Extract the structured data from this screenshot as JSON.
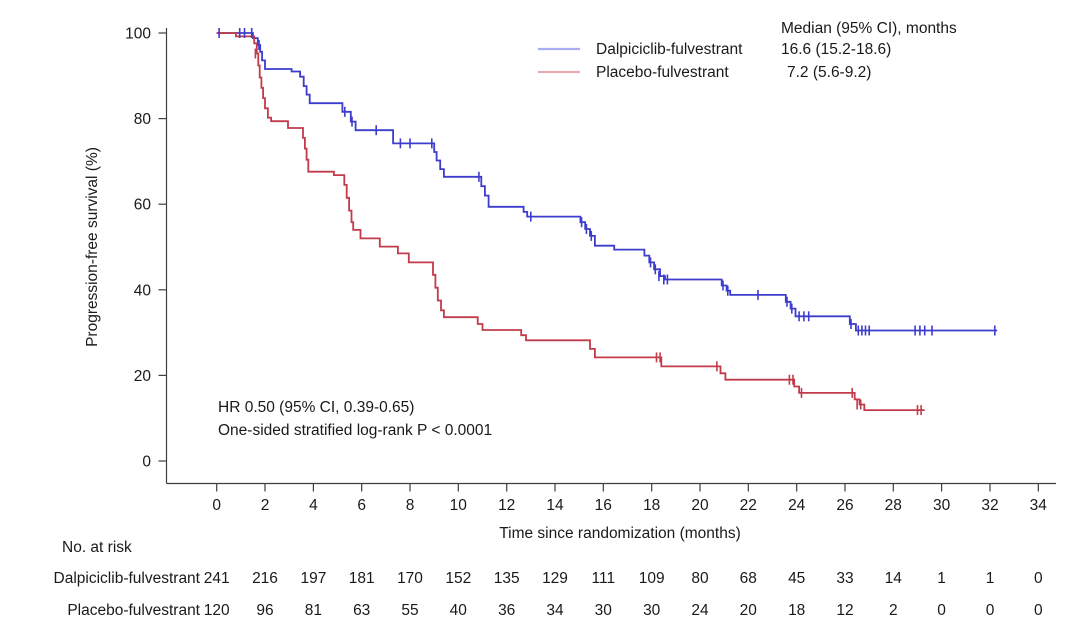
{
  "chart_data": {
    "type": "line",
    "subtype": "kaplan-meier-step",
    "title": "",
    "xlabel": "Time since randomization (months)",
    "ylabel": "Progression-free survival (%)",
    "xlim": [
      0,
      34
    ],
    "xticks": [
      0,
      2,
      4,
      6,
      8,
      10,
      12,
      14,
      16,
      18,
      20,
      22,
      24,
      26,
      28,
      30,
      32,
      34
    ],
    "ylim": [
      0,
      100
    ],
    "yticks": [
      0,
      20,
      40,
      60,
      80,
      100
    ],
    "grid": false,
    "legend_position": "top-right-inside",
    "legend_header": "Median (95% CI), months",
    "annotations": [
      "HR 0.50 (95% CI, 0.39-0.65)",
      "One-sided stratified log-rank P < 0.0001"
    ],
    "series": [
      {
        "name": "Dalpiciclib-fulvestrant",
        "median": "16.6 (15.2-18.6)",
        "color": "#3c3ccd",
        "legend_color": "#a7adf0",
        "end_time": 32.3,
        "steps": [
          [
            0,
            100
          ],
          [
            1.5,
            98.8
          ],
          [
            1.7,
            97.2
          ],
          [
            1.8,
            95.6
          ],
          [
            1.88,
            93.6
          ],
          [
            2.0,
            91.6
          ],
          [
            3.1,
            91.0
          ],
          [
            3.45,
            89.8
          ],
          [
            3.6,
            87.6
          ],
          [
            3.72,
            85.6
          ],
          [
            3.85,
            83.6
          ],
          [
            5.2,
            81.6
          ],
          [
            5.55,
            79.3
          ],
          [
            5.75,
            77.3
          ],
          [
            7.3,
            74.2
          ],
          [
            9.0,
            72.2
          ],
          [
            9.1,
            70.2
          ],
          [
            9.25,
            68.2
          ],
          [
            9.4,
            66.4
          ],
          [
            10.95,
            64.2
          ],
          [
            11.1,
            62.0
          ],
          [
            11.25,
            59.4
          ],
          [
            12.7,
            58.2
          ],
          [
            12.85,
            57.1
          ],
          [
            15.05,
            55.8
          ],
          [
            15.25,
            54.2
          ],
          [
            15.45,
            52.6
          ],
          [
            15.65,
            50.3
          ],
          [
            16.45,
            49.4
          ],
          [
            17.7,
            48.0
          ],
          [
            17.9,
            46.4
          ],
          [
            18.1,
            44.8
          ],
          [
            18.35,
            43.2
          ],
          [
            18.55,
            42.4
          ],
          [
            20.9,
            41.0
          ],
          [
            21.1,
            39.8
          ],
          [
            21.25,
            38.8
          ],
          [
            23.55,
            37.2
          ],
          [
            23.75,
            35.6
          ],
          [
            23.95,
            33.8
          ],
          [
            26.2,
            32.0
          ],
          [
            26.45,
            30.5
          ]
        ],
        "censors": [
          [
            0.1,
            100
          ],
          [
            0.95,
            100
          ],
          [
            1.15,
            100
          ],
          [
            1.45,
            100
          ],
          [
            1.75,
            97.2
          ],
          [
            5.3,
            81.6
          ],
          [
            5.6,
            79.3
          ],
          [
            6.6,
            77.3
          ],
          [
            7.6,
            74.2
          ],
          [
            8.0,
            74.2
          ],
          [
            8.9,
            74.2
          ],
          [
            10.85,
            66.4
          ],
          [
            13.0,
            57.1
          ],
          [
            15.1,
            55.8
          ],
          [
            15.3,
            54.2
          ],
          [
            15.5,
            52.6
          ],
          [
            17.95,
            46.4
          ],
          [
            18.15,
            44.8
          ],
          [
            18.3,
            43.2
          ],
          [
            18.5,
            42.4
          ],
          [
            18.65,
            42.4
          ],
          [
            20.95,
            41.0
          ],
          [
            21.15,
            39.8
          ],
          [
            22.4,
            38.8
          ],
          [
            23.6,
            37.2
          ],
          [
            23.8,
            35.6
          ],
          [
            24.1,
            33.8
          ],
          [
            24.3,
            33.8
          ],
          [
            24.5,
            33.8
          ],
          [
            26.25,
            32.0
          ],
          [
            26.55,
            30.5
          ],
          [
            26.7,
            30.5
          ],
          [
            26.85,
            30.5
          ],
          [
            27.0,
            30.5
          ],
          [
            28.9,
            30.5
          ],
          [
            29.1,
            30.5
          ],
          [
            29.3,
            30.5
          ],
          [
            29.6,
            30.5
          ],
          [
            32.2,
            30.5
          ]
        ]
      },
      {
        "name": "Placebo-fulvestrant",
        "median": "7.2 (5.6-9.2)",
        "color": "#c23b4a",
        "legend_color": "#e9aab2",
        "end_time": 29.3,
        "steps": [
          [
            0,
            100
          ],
          [
            0.8,
            99.2
          ],
          [
            1.55,
            97.6
          ],
          [
            1.66,
            95.2
          ],
          [
            1.72,
            92.4
          ],
          [
            1.78,
            89.6
          ],
          [
            1.85,
            87.2
          ],
          [
            1.92,
            84.8
          ],
          [
            2.0,
            82.4
          ],
          [
            2.12,
            80.2
          ],
          [
            2.25,
            79.4
          ],
          [
            2.95,
            77.8
          ],
          [
            3.57,
            75.5
          ],
          [
            3.65,
            73.0
          ],
          [
            3.72,
            70.4
          ],
          [
            3.79,
            67.6
          ],
          [
            4.85,
            66.8
          ],
          [
            5.28,
            64.5
          ],
          [
            5.38,
            61.5
          ],
          [
            5.48,
            58.5
          ],
          [
            5.58,
            55.8
          ],
          [
            5.65,
            54.0
          ],
          [
            5.95,
            52.0
          ],
          [
            6.75,
            50.1
          ],
          [
            7.5,
            48.5
          ],
          [
            7.95,
            46.4
          ],
          [
            8.95,
            43.5
          ],
          [
            9.05,
            40.5
          ],
          [
            9.15,
            37.5
          ],
          [
            9.28,
            35.2
          ],
          [
            9.4,
            33.6
          ],
          [
            10.8,
            32.0
          ],
          [
            11.0,
            30.6
          ],
          [
            12.6,
            29.4
          ],
          [
            12.8,
            28.2
          ],
          [
            15.45,
            26.2
          ],
          [
            15.65,
            24.2
          ],
          [
            18.4,
            22.1
          ],
          [
            20.85,
            20.5
          ],
          [
            21.05,
            19.0
          ],
          [
            23.9,
            17.4
          ],
          [
            24.1,
            15.9
          ],
          [
            26.4,
            14.4
          ],
          [
            26.6,
            13.2
          ],
          [
            26.8,
            11.9
          ]
        ],
        "censors": [
          [
            1.6,
            95.2
          ],
          [
            18.2,
            24.2
          ],
          [
            18.35,
            24.2
          ],
          [
            20.7,
            22.1
          ],
          [
            23.7,
            19.0
          ],
          [
            23.85,
            19.0
          ],
          [
            24.2,
            15.9
          ],
          [
            26.3,
            15.9
          ],
          [
            26.5,
            13.2
          ],
          [
            26.65,
            13.2
          ],
          [
            29.0,
            11.9
          ],
          [
            29.15,
            11.9
          ]
        ]
      }
    ],
    "at_risk": {
      "title": "No. at risk",
      "times": [
        0,
        2,
        4,
        6,
        8,
        10,
        12,
        14,
        16,
        18,
        20,
        22,
        24,
        26,
        28,
        30,
        32,
        34
      ],
      "rows": [
        {
          "label": "Dalpiciclib-fulvestrant",
          "counts": [
            241,
            216,
            197,
            181,
            170,
            152,
            135,
            129,
            111,
            109,
            80,
            68,
            45,
            33,
            14,
            1,
            1,
            0
          ]
        },
        {
          "label": "Placebo-fulvestrant",
          "counts": [
            120,
            96,
            81,
            63,
            55,
            40,
            36,
            34,
            30,
            30,
            24,
            20,
            18,
            12,
            2,
            0,
            0,
            0
          ]
        }
      ]
    }
  }
}
